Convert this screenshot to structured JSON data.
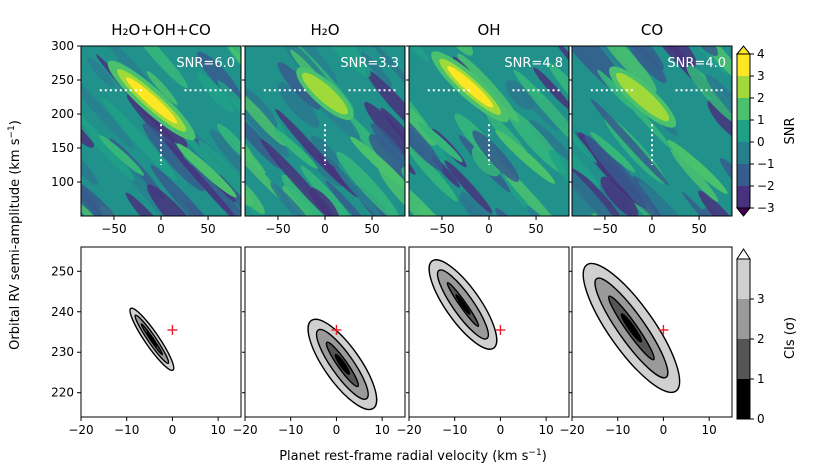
{
  "figure": {
    "ylabel_text": "Orbital RV semi-amplitude (km s",
    "ylabel_sup": "−1",
    "ylabel_close": ")",
    "xlabel_text": "Planet rest-frame radial velocity (km s",
    "xlabel_sup": "−1",
    "xlabel_close": ")"
  },
  "colors": {
    "viridis": [
      "#440154",
      "#3b528b",
      "#21918c",
      "#5ec962",
      "#fde725"
    ],
    "cls_levels": [
      "#000000",
      "#555555",
      "#9a9a9a",
      "#d0d0d0",
      "#ffffff"
    ],
    "marker": "#e8202a",
    "dotted": "#ffffff"
  },
  "chart_data": [
    {
      "type": "heatmap",
      "panel": "snr",
      "title": "H₂O+OH+CO",
      "annotation": "SNR=6.0",
      "peak_snr": 6.0,
      "xlim": [
        -85,
        85
      ],
      "ylim": [
        50,
        300
      ],
      "xticks": [
        "−50",
        "0",
        "50"
      ],
      "yticks": [
        "300",
        "250",
        "200",
        "150",
        "100"
      ],
      "ytick_values": [
        300,
        250,
        200,
        150,
        100
      ],
      "peak": {
        "x": -10,
        "y": 220
      }
    },
    {
      "type": "heatmap",
      "panel": "snr",
      "title": "H₂O",
      "annotation": "SNR=3.3",
      "peak_snr": 3.3,
      "xlim": [
        -85,
        85
      ],
      "ylim": [
        50,
        300
      ],
      "xticks": [
        "−50",
        "0",
        "50"
      ],
      "peak": {
        "x": 0,
        "y": 230
      }
    },
    {
      "type": "heatmap",
      "panel": "snr",
      "title": "OH",
      "annotation": "SNR=4.8",
      "peak_snr": 4.8,
      "xlim": [
        -85,
        85
      ],
      "ylim": [
        50,
        300
      ],
      "xticks": [
        "−50",
        "0",
        "50"
      ],
      "peak": {
        "x": -20,
        "y": 240
      }
    },
    {
      "type": "heatmap",
      "panel": "snr",
      "title": "CO",
      "annotation": "SNR=4.0",
      "peak_snr": 4.0,
      "xlim": [
        -85,
        85
      ],
      "ylim": [
        50,
        300
      ],
      "xticks": [
        "−50",
        "0",
        "50"
      ],
      "peak": {
        "x": -10,
        "y": 225
      }
    },
    {
      "type": "contour",
      "panel": "cls",
      "name": "H₂O+OH+CO",
      "xlim": [
        -20,
        15
      ],
      "ylim": [
        214,
        256
      ],
      "xticks": [
        "−20",
        "−10",
        "0",
        "10"
      ],
      "xtick_values": [
        -20,
        -10,
        0,
        10
      ],
      "yticks": [
        "250",
        "240",
        "230",
        "220"
      ],
      "ytick_values": [
        250,
        240,
        230,
        220
      ],
      "center": {
        "x": -4.5,
        "y": 233.2
      },
      "half_length": 8.9,
      "slope": -1.65,
      "widths": [
        0.1,
        0.5,
        0.9
      ],
      "marker": {
        "x": 0,
        "y": 235.5
      }
    },
    {
      "type": "contour",
      "panel": "cls",
      "name": "H₂O",
      "xlim": [
        -20,
        15
      ],
      "ylim": [
        214,
        256
      ],
      "xticks": [
        "−20",
        "−10",
        "0",
        "10"
      ],
      "center": {
        "x": 1.3,
        "y": 227.0
      },
      "half_length": 12.8,
      "slope": -1.6,
      "widths": [
        0.6,
        1.4,
        2.3
      ],
      "marker": {
        "x": 0,
        "y": 235.5
      }
    },
    {
      "type": "contour",
      "panel": "cls",
      "name": "OH",
      "xlim": [
        -20,
        15
      ],
      "ylim": [
        214,
        256
      ],
      "xticks": [
        "−20",
        "−10",
        "0",
        "10"
      ],
      "center": {
        "x": -8.2,
        "y": 241.8
      },
      "half_length": 12.7,
      "slope": -1.6,
      "widths": [
        0.4,
        1.3,
        2.2
      ],
      "marker": {
        "x": 0,
        "y": 235.5
      }
    },
    {
      "type": "contour",
      "panel": "cls",
      "name": "CO",
      "xlim": [
        -20,
        15
      ],
      "ylim": [
        214,
        256
      ],
      "xticks": [
        "−20",
        "−10",
        "0",
        "10"
      ],
      "center": {
        "x": -7.0,
        "y": 236.0
      },
      "half_length": 18.4,
      "slope": -1.6,
      "widths": [
        0.7,
        1.7,
        2.9
      ],
      "marker": {
        "x": 0,
        "y": 235.5
      }
    }
  ],
  "colorbars": {
    "snr": {
      "label": "SNR",
      "ticks": [
        "4",
        "3",
        "2",
        "1",
        "0",
        "−1",
        "−2",
        "−3"
      ],
      "tick_values": [
        4,
        3,
        2,
        1,
        0,
        -1,
        -2,
        -3
      ],
      "range": [
        -3,
        4
      ]
    },
    "cls": {
      "label": "CIs (σ)",
      "ticks": [
        "3",
        "2",
        "1",
        "0"
      ],
      "tick_values": [
        3,
        2,
        1,
        0
      ],
      "range": [
        0,
        4
      ]
    }
  }
}
